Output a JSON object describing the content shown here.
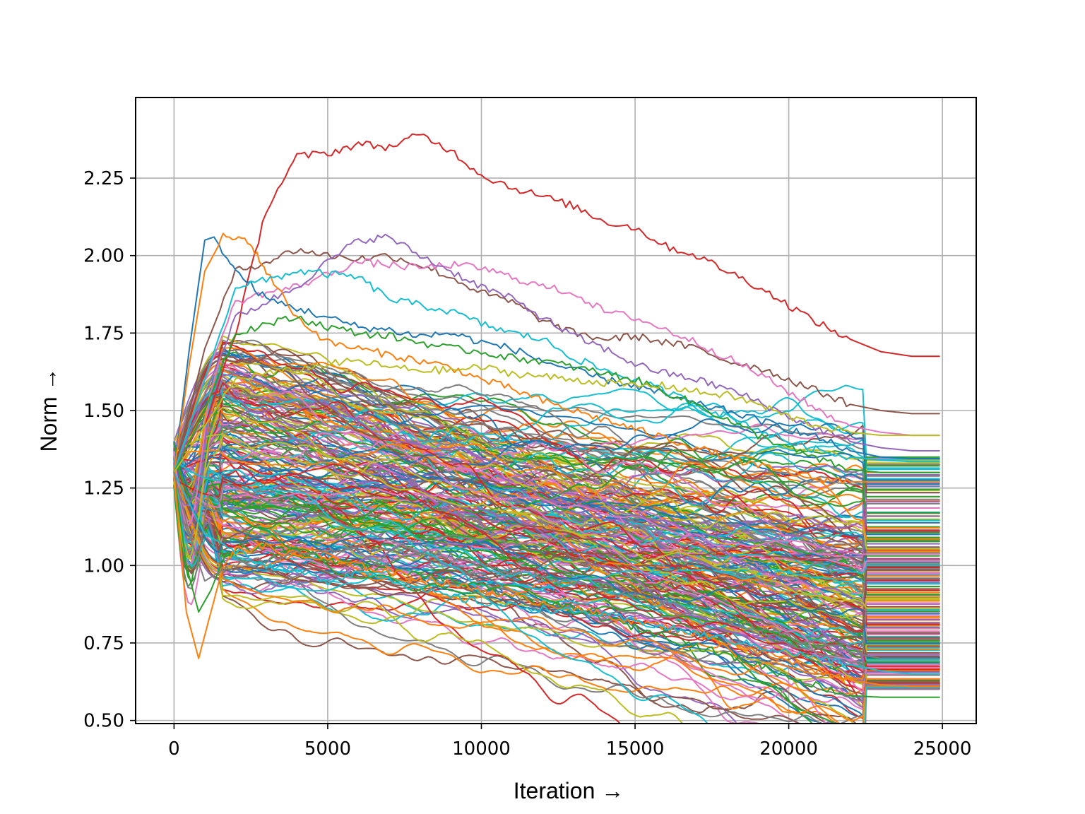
{
  "chart_data": {
    "type": "line",
    "xlabel": "Iteration →",
    "ylabel": "Norm →",
    "xlim": [
      -1250,
      26100
    ],
    "ylim": [
      0.49,
      2.51
    ],
    "xticks": [
      0,
      5000,
      10000,
      15000,
      20000,
      25000
    ],
    "xtick_labels": [
      "0",
      "5000",
      "10000",
      "15000",
      "20000",
      "25000"
    ],
    "yticks": [
      0.5,
      0.75,
      1.0,
      1.25,
      1.5,
      1.75,
      2.0,
      2.25
    ],
    "ytick_labels": [
      "0.50",
      "0.75",
      "1.00",
      "1.25",
      "1.50",
      "1.75",
      "2.00",
      "2.25"
    ],
    "grid": true,
    "legend": false,
    "color_cycle": [
      "#1f77b4",
      "#ff7f0e",
      "#2ca02c",
      "#d62728",
      "#9467bd",
      "#8c564b",
      "#e377c2",
      "#7f7f7f",
      "#bcbd22",
      "#17becf"
    ],
    "series_summary": "approximately 300 noisy trajectories starting near 1.3 at iteration 0 and settling to final values between about 0.57 and 1.67 by iteration 25000",
    "series": [
      {
        "color": "#d62728",
        "x": [
          0,
          1000,
          2000,
          3000,
          4000,
          5000,
          6000,
          7000,
          8000,
          9000,
          10000,
          11000,
          12000,
          13000,
          14000,
          15000,
          16000,
          17000,
          18000,
          19000,
          20000,
          21000,
          22000,
          23000,
          24000,
          24900
        ],
        "y": [
          1.3,
          1.45,
          1.75,
          2.15,
          2.32,
          2.33,
          2.36,
          2.35,
          2.39,
          2.34,
          2.26,
          2.22,
          2.19,
          2.16,
          2.11,
          2.09,
          2.03,
          2.0,
          1.95,
          1.9,
          1.84,
          1.78,
          1.73,
          1.69,
          1.675,
          1.675
        ]
      },
      {
        "color": "#8c564b",
        "x": [
          0,
          1000,
          2000,
          3000,
          4000,
          5000,
          6000,
          7000,
          8000,
          9000,
          10000,
          11000,
          12000,
          13000,
          14000,
          15000,
          16000,
          17000,
          18000,
          19000,
          20000,
          21000,
          22000,
          23000,
          24000,
          24900
        ],
        "y": [
          1.3,
          1.7,
          1.95,
          1.98,
          2.02,
          2.0,
          1.99,
          2.0,
          1.97,
          1.93,
          1.88,
          1.85,
          1.79,
          1.75,
          1.73,
          1.74,
          1.72,
          1.7,
          1.66,
          1.64,
          1.6,
          1.56,
          1.52,
          1.5,
          1.49,
          1.49
        ]
      },
      {
        "color": "#e377c2",
        "x": [
          0,
          1000,
          2000,
          3000,
          4000,
          5000,
          6000,
          7000,
          8000,
          9000,
          10000,
          11000,
          12000,
          13000,
          14000,
          15000,
          16000,
          17000,
          18000,
          19000,
          20000,
          21000,
          22000,
          23000,
          24000,
          24900
        ],
        "y": [
          1.3,
          1.6,
          1.85,
          1.88,
          1.9,
          1.94,
          1.98,
          1.97,
          1.96,
          1.97,
          1.96,
          1.93,
          1.9,
          1.88,
          1.82,
          1.8,
          1.76,
          1.72,
          1.67,
          1.62,
          1.56,
          1.5,
          1.45,
          1.43,
          1.42,
          1.42
        ]
      },
      {
        "color": "#9467bd",
        "x": [
          0,
          1000,
          2000,
          3000,
          4000,
          5000,
          6000,
          7000,
          8000,
          9000,
          10000,
          11000,
          12000,
          13000,
          14000,
          15000,
          16000,
          17000,
          18000,
          19000,
          20000,
          21000,
          22000,
          23000,
          24000,
          24900
        ],
        "y": [
          1.3,
          1.55,
          1.8,
          1.85,
          1.9,
          1.98,
          2.05,
          2.06,
          2.0,
          1.95,
          1.9,
          1.86,
          1.8,
          1.74,
          1.7,
          1.65,
          1.62,
          1.6,
          1.57,
          1.53,
          1.48,
          1.44,
          1.4,
          1.38,
          1.37,
          1.37
        ]
      },
      {
        "color": "#1f77b4",
        "x": [
          0,
          500,
          1000,
          1300,
          2000,
          3000,
          4000,
          5000,
          6000,
          7000,
          8000,
          9000,
          10000,
          11000,
          12000,
          13000,
          14000,
          15000,
          16000,
          17000,
          18000,
          19000,
          20000,
          21000,
          22000,
          23000,
          24000,
          24900
        ],
        "y": [
          1.3,
          1.7,
          2.05,
          2.06,
          1.95,
          1.86,
          1.83,
          1.8,
          1.77,
          1.76,
          1.74,
          1.75,
          1.72,
          1.7,
          1.66,
          1.63,
          1.6,
          1.58,
          1.55,
          1.52,
          1.5,
          1.47,
          1.44,
          1.41,
          1.37,
          1.35,
          1.345,
          1.345
        ]
      },
      {
        "color": "#ff7f0e",
        "x": [
          0,
          500,
          1000,
          1600,
          2400,
          3000,
          4000,
          5000,
          6000,
          7000,
          8000,
          9000,
          10000,
          11000,
          12000,
          13000,
          14000,
          15000,
          16000,
          17000,
          18000,
          19000,
          20000,
          21000,
          22000,
          23000,
          24000,
          24900
        ],
        "y": [
          1.3,
          1.65,
          1.95,
          2.06,
          2.05,
          1.95,
          1.8,
          1.72,
          1.7,
          1.68,
          1.66,
          1.64,
          1.6,
          1.57,
          1.53,
          1.5,
          1.47,
          1.44,
          1.41,
          1.38,
          1.35,
          1.32,
          1.3,
          1.28,
          1.27,
          1.27,
          1.27,
          1.27
        ]
      },
      {
        "color": "#17becf",
        "x": [
          0,
          1000,
          2000,
          3000,
          4000,
          5000,
          6000,
          7000,
          8000,
          9000,
          10000,
          11000,
          12000,
          13000,
          14000,
          15000,
          16000,
          17000,
          18000,
          19000,
          20000,
          21000,
          22000,
          23000,
          24000,
          24900
        ],
        "y": [
          1.3,
          1.6,
          1.9,
          1.92,
          1.95,
          1.94,
          1.93,
          1.86,
          1.84,
          1.82,
          1.78,
          1.75,
          1.73,
          1.67,
          1.63,
          1.6,
          1.56,
          1.52,
          1.48,
          1.44,
          1.4,
          1.37,
          1.35,
          1.34,
          1.335,
          1.335
        ]
      },
      {
        "color": "#2ca02c",
        "x": [
          0,
          1000,
          2000,
          3000,
          4000,
          5000,
          6000,
          7000,
          8000,
          9000,
          10000,
          11000,
          12000,
          13000,
          14000,
          15000,
          16000,
          17000,
          18000,
          19000,
          20000,
          21000,
          22000,
          23000,
          24000,
          24900
        ],
        "y": [
          1.3,
          1.5,
          1.75,
          1.78,
          1.8,
          1.77,
          1.75,
          1.74,
          1.72,
          1.7,
          1.69,
          1.67,
          1.66,
          1.64,
          1.62,
          1.6,
          1.56,
          1.52,
          1.47,
          1.42,
          1.38,
          1.34,
          1.31,
          1.3,
          1.3,
          1.3
        ]
      },
      {
        "color": "#bcbd22",
        "x": [
          0,
          1000,
          2000,
          3000,
          4000,
          5000,
          6000,
          7000,
          8000,
          9000,
          10000,
          11000,
          12000,
          13000,
          14000,
          15000,
          16000,
          17000,
          18000,
          19000,
          20000,
          21000,
          22000,
          23000,
          24000,
          24900
        ],
        "y": [
          1.3,
          1.45,
          1.6,
          1.62,
          1.63,
          1.65,
          1.66,
          1.64,
          1.63,
          1.63,
          1.64,
          1.62,
          1.61,
          1.6,
          1.59,
          1.58,
          1.58,
          1.56,
          1.55,
          1.52,
          1.48,
          1.45,
          1.43,
          1.42,
          1.42,
          1.42
        ]
      },
      {
        "color": "#2ca02c",
        "x": [
          0,
          400,
          800,
          1200,
          1600,
          2000,
          3000,
          4000,
          5000,
          6000,
          7000,
          8000,
          9000,
          10000,
          11000,
          12000,
          13000,
          14000,
          15000,
          16000,
          17000,
          18000,
          19000,
          20000,
          21000,
          22000,
          23000,
          24000,
          24900
        ],
        "y": [
          1.3,
          1.0,
          0.85,
          0.92,
          1.02,
          1.05,
          1.06,
          1.05,
          1.02,
          1.0,
          0.98,
          0.97,
          0.95,
          0.93,
          0.9,
          0.88,
          0.86,
          0.83,
          0.8,
          0.77,
          0.74,
          0.71,
          0.68,
          0.64,
          0.61,
          0.58,
          0.575,
          0.575,
          0.575
        ]
      },
      {
        "color": "#ff7f0e",
        "x": [
          0,
          400,
          800,
          1200,
          1600,
          2000,
          3000,
          4000,
          5000,
          6000,
          7000,
          8000,
          9000,
          10000,
          11000,
          12000,
          13000,
          14000,
          15000,
          16000,
          17000,
          18000,
          19000,
          20000,
          21000,
          22000,
          23000,
          24000,
          24900
        ],
        "y": [
          1.3,
          0.85,
          0.7,
          0.85,
          1.0,
          1.05,
          1.06,
          1.03,
          1.02,
          1.0,
          0.98,
          0.96,
          0.94,
          0.92,
          0.9,
          0.88,
          0.86,
          0.84,
          0.82,
          0.8,
          0.78,
          0.75,
          0.72,
          0.69,
          0.66,
          0.63,
          0.615,
          0.61,
          0.61
        ]
      },
      {
        "color": "#17becf",
        "x": [
          0,
          500,
          1000,
          2000,
          3000,
          4000,
          5000,
          6000,
          7000,
          8000,
          9000,
          10000,
          11000,
          12000,
          13000,
          14000,
          15000,
          16000,
          17000,
          18000,
          19000,
          20000,
          21000,
          22000,
          23000,
          24000,
          24900
        ],
        "y": [
          1.3,
          1.2,
          1.1,
          1.05,
          1.0,
          0.98,
          0.95,
          0.98,
          0.96,
          0.92,
          0.9,
          0.88,
          0.87,
          0.86,
          0.85,
          0.84,
          0.82,
          0.8,
          0.78,
          0.76,
          0.74,
          0.72,
          0.7,
          0.68,
          0.66,
          0.65,
          0.65
        ]
      },
      {
        "color": "#7f7f7f",
        "x": [
          0,
          500,
          1000,
          1500,
          2000,
          3000,
          4000,
          5000,
          6000,
          7000,
          8000,
          9000,
          10000,
          11000,
          12000,
          13000,
          14000,
          15000,
          16000,
          17000,
          18000,
          19000,
          20000,
          21000,
          22000,
          23000,
          24000,
          24900
        ],
        "y": [
          1.3,
          1.1,
          0.95,
          0.98,
          1.0,
          1.02,
          1.04,
          1.05,
          1.06,
          1.05,
          1.04,
          1.03,
          1.0,
          0.98,
          0.96,
          0.94,
          0.92,
          0.9,
          0.88,
          0.86,
          0.83,
          0.8,
          0.77,
          0.74,
          0.72,
          0.7,
          0.7,
          0.7
        ]
      }
    ]
  }
}
